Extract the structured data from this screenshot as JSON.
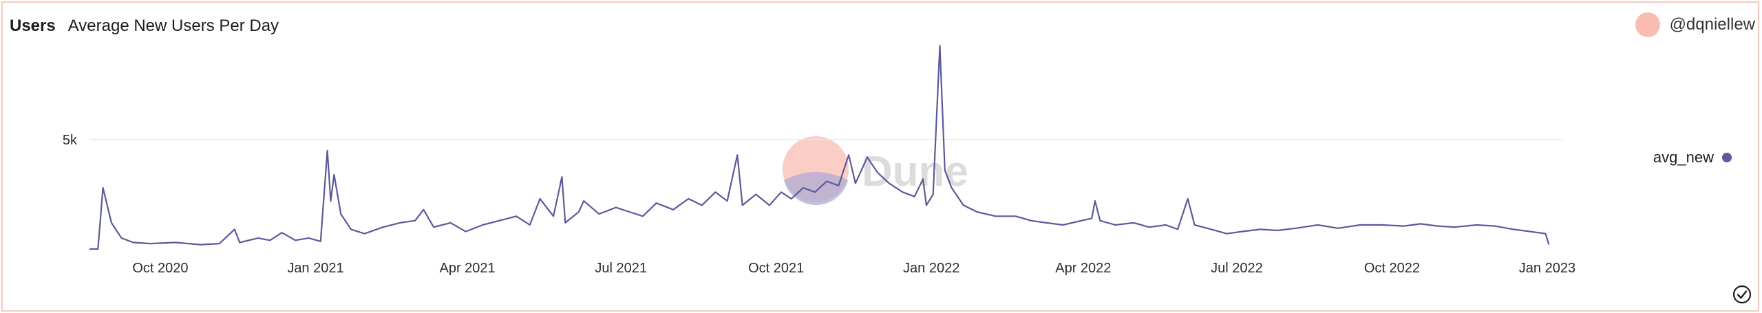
{
  "header": {
    "section": "Users",
    "title": "Average New Users Per Day"
  },
  "user": {
    "handle": "@dqniellew",
    "avatar_color": "#f8bcb1"
  },
  "legend": {
    "label": "avg_new",
    "color": "#5b5a9b"
  },
  "watermark": {
    "text": "Dune"
  },
  "chart_data": {
    "type": "line",
    "title": "Average New Users Per Day",
    "xlabel": "",
    "ylabel": "",
    "series_color": "#5b5a9b",
    "ytick": {
      "value": 5000,
      "label": "5k"
    },
    "ylim": [
      0,
      9500
    ],
    "xlim": [
      "2020-08-20",
      "2023-01-10"
    ],
    "xticks": [
      {
        "date": "2020-10-01",
        "label": "Oct 2020"
      },
      {
        "date": "2021-01-01",
        "label": "Jan 2021"
      },
      {
        "date": "2021-04-01",
        "label": "Apr 2021"
      },
      {
        "date": "2021-07-01",
        "label": "Jul 2021"
      },
      {
        "date": "2021-10-01",
        "label": "Oct 2021"
      },
      {
        "date": "2022-01-01",
        "label": "Jan 2022"
      },
      {
        "date": "2022-04-01",
        "label": "Apr 2022"
      },
      {
        "date": "2022-07-01",
        "label": "Jul 2022"
      },
      {
        "date": "2022-10-01",
        "label": "Oct 2022"
      },
      {
        "date": "2023-01-01",
        "label": "Jan 2023"
      }
    ],
    "grid": "horizontal",
    "legend_position": "right",
    "series": [
      {
        "name": "avg_new",
        "points": [
          [
            "2020-08-20",
            0
          ],
          [
            "2020-08-25",
            0
          ],
          [
            "2020-08-28",
            2800
          ],
          [
            "2020-09-02",
            1200
          ],
          [
            "2020-09-08",
            500
          ],
          [
            "2020-09-15",
            300
          ],
          [
            "2020-09-25",
            250
          ],
          [
            "2020-10-10",
            300
          ],
          [
            "2020-10-25",
            200
          ],
          [
            "2020-11-05",
            250
          ],
          [
            "2020-11-14",
            900
          ],
          [
            "2020-11-17",
            300
          ],
          [
            "2020-11-28",
            500
          ],
          [
            "2020-12-05",
            400
          ],
          [
            "2020-12-12",
            750
          ],
          [
            "2020-12-20",
            400
          ],
          [
            "2020-12-28",
            500
          ],
          [
            "2021-01-04",
            350
          ],
          [
            "2021-01-08",
            4500
          ],
          [
            "2021-01-10",
            2200
          ],
          [
            "2021-01-12",
            3400
          ],
          [
            "2021-01-16",
            1600
          ],
          [
            "2021-01-22",
            900
          ],
          [
            "2021-01-30",
            700
          ],
          [
            "2021-02-10",
            1000
          ],
          [
            "2021-02-20",
            1200
          ],
          [
            "2021-03-01",
            1300
          ],
          [
            "2021-03-06",
            1800
          ],
          [
            "2021-03-12",
            1000
          ],
          [
            "2021-03-22",
            1200
          ],
          [
            "2021-03-31",
            800
          ],
          [
            "2021-04-10",
            1100
          ],
          [
            "2021-04-20",
            1300
          ],
          [
            "2021-04-30",
            1500
          ],
          [
            "2021-05-08",
            1100
          ],
          [
            "2021-05-14",
            2300
          ],
          [
            "2021-05-22",
            1500
          ],
          [
            "2021-05-27",
            3300
          ],
          [
            "2021-05-29",
            1200
          ],
          [
            "2021-06-06",
            1700
          ],
          [
            "2021-06-09",
            2200
          ],
          [
            "2021-06-18",
            1600
          ],
          [
            "2021-06-28",
            1900
          ],
          [
            "2021-07-06",
            1700
          ],
          [
            "2021-07-14",
            1500
          ],
          [
            "2021-07-22",
            2100
          ],
          [
            "2021-08-01",
            1800
          ],
          [
            "2021-08-10",
            2300
          ],
          [
            "2021-08-18",
            2000
          ],
          [
            "2021-08-26",
            2600
          ],
          [
            "2021-09-02",
            2200
          ],
          [
            "2021-09-08",
            4300
          ],
          [
            "2021-09-11",
            2000
          ],
          [
            "2021-09-19",
            2500
          ],
          [
            "2021-09-27",
            2000
          ],
          [
            "2021-10-04",
            2600
          ],
          [
            "2021-10-10",
            2300
          ],
          [
            "2021-10-17",
            2800
          ],
          [
            "2021-10-24",
            2600
          ],
          [
            "2021-10-31",
            3100
          ],
          [
            "2021-11-07",
            2900
          ],
          [
            "2021-11-13",
            4300
          ],
          [
            "2021-11-17",
            3000
          ],
          [
            "2021-11-24",
            4200
          ],
          [
            "2021-11-30",
            3500
          ],
          [
            "2021-12-07",
            3000
          ],
          [
            "2021-12-15",
            2600
          ],
          [
            "2021-12-22",
            2400
          ],
          [
            "2021-12-27",
            3200
          ],
          [
            "2021-12-29",
            2000
          ],
          [
            "2022-01-02",
            2500
          ],
          [
            "2022-01-06",
            9300
          ],
          [
            "2022-01-09",
            3600
          ],
          [
            "2022-01-13",
            2800
          ],
          [
            "2022-01-20",
            2000
          ],
          [
            "2022-01-28",
            1700
          ],
          [
            "2022-02-08",
            1500
          ],
          [
            "2022-02-20",
            1500
          ],
          [
            "2022-03-01",
            1300
          ],
          [
            "2022-03-10",
            1200
          ],
          [
            "2022-03-20",
            1100
          ],
          [
            "2022-03-31",
            1300
          ],
          [
            "2022-04-06",
            1400
          ],
          [
            "2022-04-08",
            2200
          ],
          [
            "2022-04-11",
            1300
          ],
          [
            "2022-04-20",
            1100
          ],
          [
            "2022-05-01",
            1200
          ],
          [
            "2022-05-10",
            1000
          ],
          [
            "2022-05-20",
            1100
          ],
          [
            "2022-05-27",
            900
          ],
          [
            "2022-06-02",
            2300
          ],
          [
            "2022-06-06",
            1100
          ],
          [
            "2022-06-16",
            900
          ],
          [
            "2022-06-25",
            700
          ],
          [
            "2022-07-04",
            800
          ],
          [
            "2022-07-15",
            900
          ],
          [
            "2022-07-25",
            850
          ],
          [
            "2022-08-05",
            950
          ],
          [
            "2022-08-18",
            1100
          ],
          [
            "2022-08-30",
            950
          ],
          [
            "2022-09-12",
            1100
          ],
          [
            "2022-09-25",
            1100
          ],
          [
            "2022-10-08",
            1050
          ],
          [
            "2022-10-18",
            1150
          ],
          [
            "2022-10-28",
            1050
          ],
          [
            "2022-11-07",
            1000
          ],
          [
            "2022-11-20",
            1100
          ],
          [
            "2022-12-01",
            1050
          ],
          [
            "2022-12-12",
            900
          ],
          [
            "2022-12-22",
            800
          ],
          [
            "2022-12-31",
            700
          ],
          [
            "2023-01-02",
            200
          ]
        ]
      }
    ]
  }
}
